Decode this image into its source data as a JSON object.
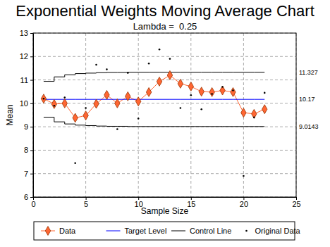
{
  "chart_data": {
    "type": "line",
    "title": "Exponential Weights Moving Average Chart",
    "subtitle": "Lambda =  0.25",
    "x_label": "Sample Size",
    "y_label": "Mean",
    "x": [
      1,
      2,
      3,
      4,
      5,
      6,
      7,
      8,
      9,
      10,
      11,
      12,
      13,
      14,
      15,
      16,
      17,
      18,
      19,
      20,
      21,
      22
    ],
    "xlim": [
      0,
      25
    ],
    "xticks": [
      0,
      5,
      10,
      15,
      20,
      25
    ],
    "ylim": [
      6,
      13
    ],
    "yticks": [
      6,
      7,
      8,
      9,
      10,
      11,
      12,
      13
    ],
    "grid": true,
    "legend": "bottom",
    "series": [
      {
        "name": "Data",
        "type": "line",
        "color": "#ff6633",
        "marker": "diamond",
        "line_style": "solid",
        "values": [
          10.2,
          9.97,
          10.0,
          9.38,
          9.48,
          9.98,
          10.36,
          10.0,
          10.3,
          10.08,
          10.48,
          10.93,
          11.2,
          10.84,
          10.72,
          10.5,
          10.48,
          10.55,
          10.48,
          9.6,
          9.55,
          9.75
        ]
      },
      {
        "name": "Target Level",
        "type": "line",
        "color": "#0000ff",
        "line_style": "solid",
        "values": [
          10.17,
          10.17,
          10.17,
          10.17,
          10.17,
          10.17,
          10.17,
          10.17,
          10.17,
          10.17,
          10.17,
          10.17,
          10.17,
          10.17,
          10.17,
          10.17,
          10.17,
          10.17,
          10.17,
          10.17,
          10.17,
          10.17
        ]
      },
      {
        "name": "Control Line",
        "type": "line",
        "color": "#000000",
        "line_style": "step",
        "values": [
          10.94,
          11.13,
          11.22,
          11.27,
          11.29,
          11.31,
          11.32,
          11.32,
          11.33,
          11.33,
          11.33,
          11.33,
          11.33,
          11.33,
          11.33,
          11.33,
          11.33,
          11.33,
          11.33,
          11.33,
          11.33,
          11.33
        ]
      },
      {
        "name": "Control Line",
        "type": "line",
        "color": "#000000",
        "line_style": "step",
        "values": [
          9.41,
          9.21,
          9.12,
          9.07,
          9.05,
          9.03,
          9.02,
          9.02,
          9.01,
          9.01,
          9.01,
          9.01,
          9.01,
          9.01,
          9.01,
          9.01,
          9.01,
          9.01,
          9.01,
          9.01,
          9.01,
          9.01
        ]
      },
      {
        "name": "Original Data",
        "type": "scatter",
        "color": "#000000",
        "marker": "dot",
        "values": [
          10.2,
          9.9,
          10.25,
          7.45,
          9.8,
          11.65,
          11.45,
          8.9,
          11.3,
          9.35,
          11.7,
          12.3,
          11.9,
          9.8,
          10.35,
          9.75,
          10.4,
          10.7,
          10.55,
          6.9,
          9.4,
          10.45
        ]
      }
    ],
    "annotations": [
      {
        "text": "11.327",
        "y": 11.327
      },
      {
        "text": "10.17",
        "y": 10.17
      },
      {
        "text": "9.0143",
        "y": 9.0143
      }
    ]
  }
}
